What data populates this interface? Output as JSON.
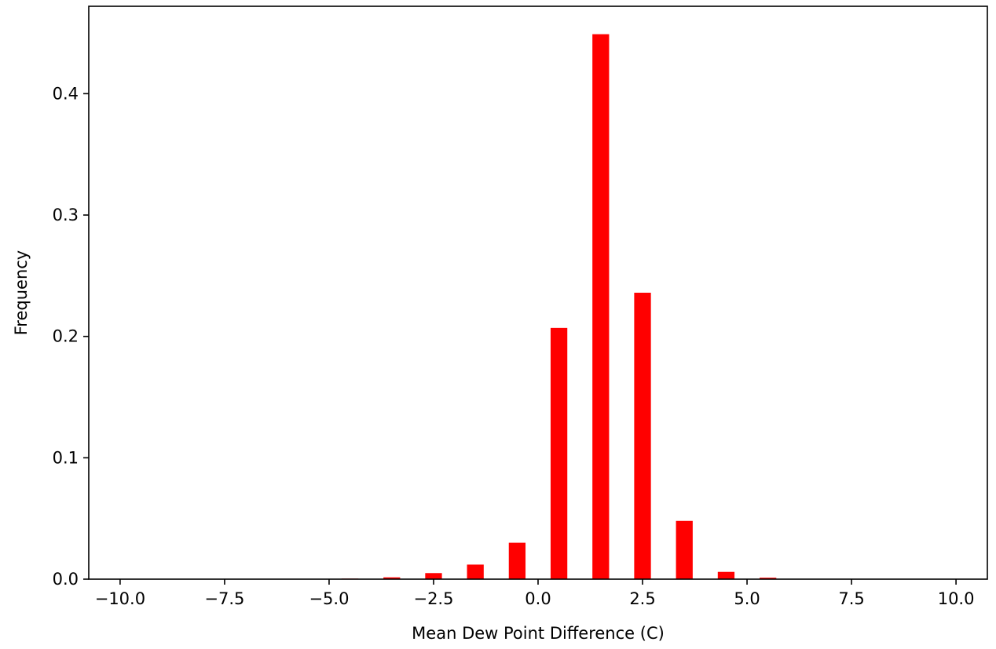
{
  "chart_data": {
    "type": "bar",
    "title": "",
    "xlabel": "Mean Dew Point Difference (C)",
    "ylabel": "Frequency",
    "xlim": [
      -10.75,
      10.75
    ],
    "ylim": [
      0,
      0.472
    ],
    "bar_color": "#ff0000",
    "bar_width": 0.4,
    "grid": false,
    "legend": "none",
    "x": [
      -4.5,
      -3.5,
      -2.5,
      -1.5,
      -0.5,
      0.5,
      1.5,
      2.5,
      3.5,
      4.5,
      5.5
    ],
    "values": [
      0.0005,
      0.0015,
      0.005,
      0.012,
      0.03,
      0.207,
      0.449,
      0.236,
      0.048,
      0.006,
      0.0012
    ],
    "xticks": [
      -10,
      -7.5,
      -5,
      -2.5,
      0,
      2.5,
      5,
      7.5,
      10
    ],
    "xtick_labels": [
      "−10.0",
      "−7.5",
      "−5.0",
      "−2.5",
      "0.0",
      "2.5",
      "5.0",
      "7.5",
      "10.0"
    ],
    "yticks": [
      0,
      0.1,
      0.2,
      0.3,
      0.4
    ],
    "ytick_labels": [
      "0.0",
      "0.1",
      "0.2",
      "0.3",
      "0.4"
    ]
  }
}
